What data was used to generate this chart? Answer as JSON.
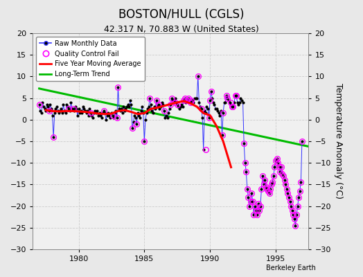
{
  "title": "BOSTON/HULL (CGLS)",
  "subtitle": "42.317 N, 70.883 W (United States)",
  "ylabel": "Temperature Anomaly (°C)",
  "credit": "Berkeley Earth",
  "xlim": [
    1976.5,
    1997.5
  ],
  "ylim": [
    -30,
    20
  ],
  "yticks": [
    -30,
    -25,
    -20,
    -15,
    -10,
    -5,
    0,
    5,
    10,
    15,
    20
  ],
  "xticks": [
    1980,
    1985,
    1990,
    1995
  ],
  "bg_color": "#e8e8e8",
  "plot_bg": "#f0f0f0",
  "raw_x": [
    1977.0,
    1977.083,
    1977.167,
    1977.25,
    1977.333,
    1977.417,
    1977.5,
    1977.583,
    1977.667,
    1977.75,
    1977.833,
    1977.917,
    1978.0,
    1978.083,
    1978.167,
    1978.25,
    1978.333,
    1978.417,
    1978.5,
    1978.583,
    1978.667,
    1978.75,
    1978.833,
    1978.917,
    1979.0,
    1979.083,
    1979.167,
    1979.25,
    1979.333,
    1979.417,
    1979.5,
    1979.583,
    1979.667,
    1979.75,
    1979.833,
    1979.917,
    1980.0,
    1980.083,
    1980.167,
    1980.25,
    1980.333,
    1980.417,
    1980.5,
    1980.583,
    1980.667,
    1980.75,
    1980.833,
    1980.917,
    1981.0,
    1981.083,
    1981.167,
    1981.25,
    1981.333,
    1981.417,
    1981.5,
    1981.583,
    1981.667,
    1981.75,
    1981.833,
    1981.917,
    1982.0,
    1982.083,
    1982.167,
    1982.25,
    1982.333,
    1982.417,
    1982.5,
    1982.583,
    1982.667,
    1982.75,
    1982.833,
    1982.917,
    1983.0,
    1983.083,
    1983.167,
    1983.25,
    1983.333,
    1983.417,
    1983.5,
    1983.583,
    1983.667,
    1983.75,
    1983.833,
    1983.917,
    1984.0,
    1984.083,
    1984.167,
    1984.25,
    1984.333,
    1984.417,
    1984.5,
    1984.583,
    1984.667,
    1984.75,
    1984.833,
    1984.917,
    1985.0,
    1985.083,
    1985.167,
    1985.25,
    1985.333,
    1985.417,
    1985.5,
    1985.583,
    1985.667,
    1985.75,
    1985.833,
    1985.917,
    1986.0,
    1986.083,
    1986.167,
    1986.25,
    1986.333,
    1986.417,
    1986.5,
    1986.583,
    1986.667,
    1986.75,
    1986.833,
    1986.917,
    1987.0,
    1987.083,
    1987.167,
    1987.25,
    1987.333,
    1987.417,
    1987.5,
    1987.583,
    1987.667,
    1987.75,
    1987.833,
    1987.917,
    1988.0,
    1988.083,
    1988.167,
    1988.25,
    1988.333,
    1988.417,
    1988.5,
    1988.583,
    1988.667,
    1988.75,
    1988.833,
    1988.917,
    1989.0,
    1989.083,
    1989.167,
    1989.25,
    1989.333,
    1989.417,
    1989.5,
    1989.583,
    1989.667,
    1989.75,
    1989.833,
    1989.917,
    1990.0,
    1990.083,
    1990.167,
    1990.25,
    1990.333,
    1990.417,
    1990.5,
    1990.583,
    1990.667,
    1990.75,
    1990.833,
    1990.917,
    1991.0,
    1991.083,
    1991.167,
    1991.25,
    1991.333,
    1991.417,
    1991.5,
    1991.583,
    1991.667,
    1991.75,
    1991.833,
    1991.917,
    1992.0,
    1992.083,
    1992.167,
    1992.25,
    1992.333,
    1992.417,
    1992.5,
    1992.583,
    1992.667,
    1992.75,
    1992.833,
    1992.917,
    1993.0,
    1993.083,
    1993.167,
    1993.25,
    1993.333,
    1993.417,
    1993.5,
    1993.583,
    1993.667,
    1993.75,
    1993.833,
    1993.917,
    1994.0,
    1994.083,
    1994.167,
    1994.25,
    1994.333,
    1994.417,
    1994.5,
    1994.583,
    1994.667,
    1994.75,
    1994.833,
    1994.917,
    1995.0,
    1995.083,
    1995.167,
    1995.25,
    1995.333,
    1995.417,
    1995.5,
    1995.583,
    1995.667,
    1995.75,
    1995.833,
    1995.917,
    1996.0,
    1996.083,
    1996.167,
    1996.25,
    1996.333,
    1996.417,
    1996.5,
    1996.583,
    1996.667,
    1996.75,
    1996.833,
    1996.917,
    1997.0
  ],
  "raw_y": [
    3.5,
    2.0,
    1.5,
    4.0,
    3.0,
    2.5,
    2.0,
    3.5,
    3.0,
    2.0,
    3.5,
    2.5,
    1.0,
    -4.0,
    1.5,
    2.5,
    3.0,
    2.0,
    1.5,
    2.0,
    2.5,
    1.5,
    3.5,
    2.0,
    1.5,
    3.5,
    3.0,
    2.5,
    2.0,
    4.0,
    2.5,
    2.5,
    2.0,
    3.0,
    2.5,
    1.0,
    2.5,
    1.5,
    2.0,
    1.5,
    3.0,
    2.5,
    2.0,
    1.5,
    2.0,
    1.0,
    2.5,
    1.5,
    1.0,
    0.5,
    1.5,
    2.0,
    1.5,
    2.0,
    1.0,
    1.5,
    1.0,
    0.5,
    1.5,
    2.0,
    1.5,
    0.0,
    1.0,
    1.5,
    1.0,
    0.5,
    1.5,
    1.0,
    0.5,
    1.5,
    2.0,
    0.5,
    7.5,
    2.5,
    2.0,
    2.5,
    1.5,
    3.0,
    2.0,
    2.5,
    3.0,
    3.5,
    3.0,
    4.5,
    3.5,
    -2.0,
    -0.5,
    1.0,
    0.5,
    -1.0,
    1.5,
    1.0,
    0.5,
    2.0,
    3.0,
    1.5,
    -5.0,
    0.0,
    1.5,
    2.5,
    3.0,
    5.0,
    3.5,
    2.0,
    1.5,
    3.0,
    2.5,
    4.5,
    3.0,
    3.5,
    2.5,
    3.0,
    4.0,
    3.5,
    2.0,
    0.5,
    1.0,
    0.5,
    1.5,
    2.5,
    3.5,
    5.0,
    4.5,
    4.5,
    5.0,
    4.0,
    3.5,
    3.0,
    2.5,
    3.0,
    3.5,
    3.0,
    4.5,
    5.0,
    4.0,
    4.5,
    5.0,
    4.5,
    4.0,
    4.5,
    4.5,
    4.0,
    5.0,
    5.0,
    5.0,
    10.0,
    4.0,
    3.0,
    2.5,
    0.5,
    -7.0,
    2.0,
    1.5,
    3.0,
    2.5,
    0.5,
    4.5,
    6.5,
    5.0,
    4.0,
    3.5,
    2.5,
    2.5,
    2.0,
    1.5,
    1.0,
    2.0,
    -3.5,
    1.5,
    4.0,
    4.0,
    5.5,
    5.0,
    4.5,
    4.0,
    3.5,
    3.0,
    3.0,
    4.0,
    5.5,
    5.5,
    4.0,
    3.5,
    4.0,
    5.0,
    4.5,
    4.0,
    -5.5,
    -10.0,
    -12.0,
    -16.0,
    -18.0,
    -20.0,
    -19.0,
    -17.0,
    -19.0,
    -22.0,
    -20.0,
    -21.0,
    -22.0,
    -19.5,
    -21.0,
    -20.0,
    -16.0,
    -13.0,
    -15.0,
    -14.0,
    -15.5,
    -16.0,
    -16.5,
    -17.0,
    -16.0,
    -15.0,
    -14.5,
    -13.0,
    -11.0,
    -9.5,
    -9.0,
    -10.0,
    -11.0,
    -12.0,
    -11.0,
    -12.5,
    -13.0,
    -14.0,
    -15.0,
    -16.0,
    -17.0,
    -18.0,
    -19.0,
    -20.0,
    -21.0,
    -22.0,
    -23.0,
    -24.5,
    -22.0,
    -20.0,
    -18.0,
    -16.5,
    -14.5,
    -5.0
  ],
  "qc_x": [
    1977.0,
    1977.75,
    1978.083,
    1979.25,
    1979.583,
    1980.917,
    1981.917,
    1982.583,
    1982.917,
    1983.0,
    1984.083,
    1984.417,
    1985.0,
    1985.417,
    1985.917,
    1986.083,
    1986.5,
    1987.0,
    1987.083,
    1987.333,
    1987.5,
    1988.0,
    1988.083,
    1988.25,
    1988.333,
    1988.5,
    1988.583,
    1989.083,
    1989.333,
    1989.667,
    1989.917,
    1990.0,
    1990.083,
    1990.917,
    1991.0,
    1991.25,
    1991.333,
    1991.583,
    1991.667,
    1991.75,
    1991.917,
    1992.0,
    1992.583,
    1992.667,
    1992.75,
    1992.833,
    1992.917,
    1993.0,
    1993.083,
    1993.167,
    1993.25,
    1993.333,
    1993.417,
    1993.5,
    1993.583,
    1993.667,
    1993.75,
    1993.833,
    1993.917,
    1994.0,
    1994.083,
    1994.167,
    1994.25,
    1994.333,
    1994.417,
    1994.5,
    1994.583,
    1994.667,
    1994.75,
    1994.833,
    1994.917,
    1995.0,
    1995.083,
    1995.167,
    1995.25,
    1995.333,
    1995.417,
    1995.5,
    1995.583,
    1995.667,
    1995.75,
    1995.833,
    1995.917,
    1996.0,
    1996.083,
    1996.167,
    1996.25,
    1996.333,
    1996.417,
    1996.5,
    1996.583,
    1996.667,
    1996.75,
    1996.833,
    1996.917,
    1997.0
  ],
  "qc_y": [
    3.5,
    2.0,
    -4.0,
    2.5,
    2.5,
    1.5,
    2.0,
    1.0,
    0.5,
    7.5,
    -2.0,
    -1.0,
    -5.0,
    5.0,
    4.5,
    3.5,
    2.0,
    3.5,
    5.0,
    4.0,
    3.5,
    4.5,
    5.0,
    4.5,
    5.0,
    4.0,
    4.5,
    10.0,
    2.5,
    -7.0,
    0.5,
    4.5,
    6.5,
    -3.5,
    1.5,
    5.5,
    5.0,
    4.0,
    3.0,
    3.0,
    5.5,
    5.5,
    -5.5,
    -10.0,
    -12.0,
    -16.0,
    -18.0,
    -20.0,
    -19.0,
    -17.0,
    -19.0,
    -22.0,
    -20.0,
    -21.0,
    -22.0,
    -19.5,
    -21.0,
    -20.0,
    -16.0,
    -13.0,
    -15.0,
    -14.0,
    -15.5,
    -16.0,
    -16.5,
    -17.0,
    -16.0,
    -15.0,
    -14.5,
    -13.0,
    -11.0,
    -9.5,
    -9.0,
    -10.0,
    -11.0,
    -12.0,
    -11.0,
    -12.5,
    -13.0,
    -14.0,
    -15.0,
    -16.0,
    -17.0,
    -18.0,
    -19.0,
    -20.0,
    -21.0,
    -22.0,
    -23.0,
    -24.5,
    -22.0,
    -20.0,
    -18.0,
    -16.5,
    -14.5,
    -5.0
  ],
  "moving_avg_x": [
    1977.5,
    1978.0,
    1978.5,
    1979.0,
    1979.5,
    1980.0,
    1980.5,
    1981.0,
    1981.5,
    1982.0,
    1982.5,
    1983.0,
    1983.5,
    1984.0,
    1984.5,
    1985.0,
    1985.5,
    1986.0,
    1986.5,
    1987.0,
    1987.5,
    1988.0,
    1988.5,
    1989.0,
    1989.5,
    1990.0,
    1990.5,
    1991.0,
    1991.2,
    1991.4,
    1991.6
  ],
  "moving_avg_y": [
    2.2,
    2.0,
    1.9,
    2.0,
    2.0,
    1.9,
    1.8,
    1.6,
    1.4,
    1.3,
    1.4,
    2.0,
    2.2,
    1.8,
    1.3,
    1.5,
    2.5,
    2.8,
    3.2,
    3.6,
    4.0,
    4.3,
    3.8,
    3.0,
    1.5,
    1.0,
    -1.5,
    -5.0,
    -7.0,
    -9.0,
    -11.0
  ],
  "trend_x": [
    1977.0,
    1997.5
  ],
  "trend_y": [
    7.2,
    -6.2
  ],
  "raw_color": "#3333ff",
  "raw_marker_color": "#000000",
  "qc_color": "#ff00ff",
  "mavg_color": "#ff0000",
  "trend_color": "#00bb00",
  "title_fontsize": 12,
  "subtitle_fontsize": 9,
  "tick_fontsize": 8,
  "ylabel_fontsize": 9
}
